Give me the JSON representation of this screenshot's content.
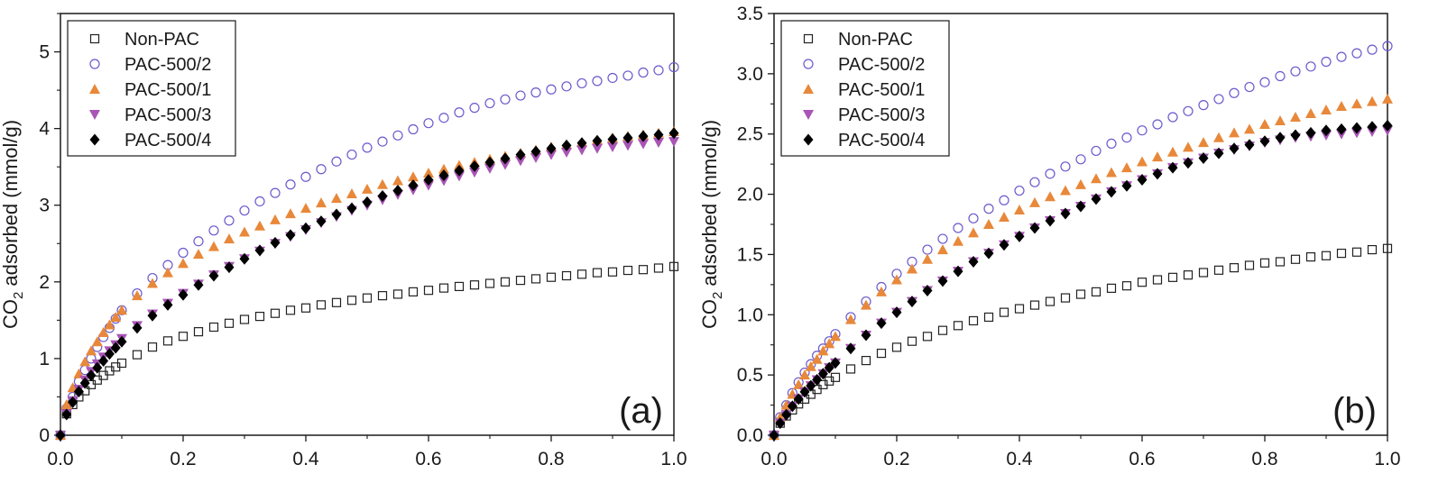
{
  "chart_data": [
    {
      "type": "scatter",
      "panel_label": "(a)",
      "ylabel_main": "CO",
      "ylabel_sub": "2",
      "ylabel_rest": " adsorbed (mmol/g)",
      "xlim": [
        0,
        1.0
      ],
      "ylim": [
        0,
        5.5
      ],
      "xticks": [
        "0.0",
        "0.2",
        "0.4",
        "0.6",
        "0.8",
        "1.0"
      ],
      "yticks": [
        "0",
        "1",
        "2",
        "3",
        "4",
        "5"
      ],
      "legend_position": "top-left",
      "series": [
        {
          "name": "Non-PAC",
          "marker": "square-open",
          "color": "#222222",
          "x": [
            0.0,
            0.01,
            0.02,
            0.03,
            0.04,
            0.05,
            0.06,
            0.07,
            0.08,
            0.09,
            0.1,
            0.125,
            0.15,
            0.175,
            0.2,
            0.225,
            0.25,
            0.275,
            0.3,
            0.325,
            0.35,
            0.375,
            0.4,
            0.425,
            0.45,
            0.475,
            0.5,
            0.525,
            0.55,
            0.575,
            0.6,
            0.625,
            0.65,
            0.675,
            0.7,
            0.725,
            0.75,
            0.775,
            0.8,
            0.825,
            0.85,
            0.875,
            0.9,
            0.925,
            0.95,
            0.975,
            1.0
          ],
          "y": [
            0.0,
            0.28,
            0.4,
            0.5,
            0.58,
            0.66,
            0.72,
            0.78,
            0.84,
            0.89,
            0.94,
            1.05,
            1.15,
            1.23,
            1.29,
            1.35,
            1.41,
            1.46,
            1.51,
            1.55,
            1.59,
            1.63,
            1.66,
            1.7,
            1.73,
            1.76,
            1.79,
            1.82,
            1.84,
            1.87,
            1.89,
            1.92,
            1.94,
            1.96,
            1.98,
            2.0,
            2.02,
            2.04,
            2.06,
            2.08,
            2.1,
            2.12,
            2.13,
            2.15,
            2.16,
            2.18,
            2.2
          ]
        },
        {
          "name": "PAC-500/2",
          "marker": "circle-open",
          "color": "#6a5acd",
          "x": [
            0.0,
            0.01,
            0.02,
            0.03,
            0.04,
            0.05,
            0.06,
            0.07,
            0.08,
            0.09,
            0.1,
            0.125,
            0.15,
            0.175,
            0.2,
            0.225,
            0.25,
            0.275,
            0.3,
            0.325,
            0.35,
            0.375,
            0.4,
            0.425,
            0.45,
            0.475,
            0.5,
            0.525,
            0.55,
            0.575,
            0.6,
            0.625,
            0.65,
            0.675,
            0.7,
            0.725,
            0.75,
            0.775,
            0.8,
            0.825,
            0.85,
            0.875,
            0.9,
            0.925,
            0.95,
            0.975,
            1.0
          ],
          "y": [
            0.0,
            0.35,
            0.5,
            0.7,
            0.85,
            1.0,
            1.15,
            1.28,
            1.4,
            1.52,
            1.63,
            1.85,
            2.05,
            2.22,
            2.38,
            2.53,
            2.67,
            2.8,
            2.93,
            3.05,
            3.16,
            3.27,
            3.37,
            3.47,
            3.57,
            3.66,
            3.75,
            3.83,
            3.91,
            3.99,
            4.07,
            4.14,
            4.21,
            4.27,
            4.33,
            4.38,
            4.43,
            4.47,
            4.51,
            4.55,
            4.59,
            4.62,
            4.66,
            4.69,
            4.73,
            4.76,
            4.8
          ]
        },
        {
          "name": "PAC-500/1",
          "marker": "triangle-up",
          "color": "#e8883a",
          "x": [
            0.0,
            0.01,
            0.02,
            0.03,
            0.04,
            0.05,
            0.06,
            0.07,
            0.08,
            0.09,
            0.1,
            0.125,
            0.15,
            0.175,
            0.2,
            0.225,
            0.25,
            0.275,
            0.3,
            0.325,
            0.35,
            0.375,
            0.4,
            0.425,
            0.45,
            0.475,
            0.5,
            0.525,
            0.55,
            0.575,
            0.6,
            0.625,
            0.65,
            0.675,
            0.7,
            0.725,
            0.75,
            0.775,
            0.8,
            0.825,
            0.85,
            0.875,
            0.9,
            0.925,
            0.95,
            0.975,
            1.0
          ],
          "y": [
            0.0,
            0.4,
            0.62,
            0.8,
            0.96,
            1.1,
            1.22,
            1.34,
            1.44,
            1.54,
            1.63,
            1.82,
            1.98,
            2.12,
            2.24,
            2.36,
            2.46,
            2.56,
            2.65,
            2.73,
            2.81,
            2.89,
            2.96,
            3.03,
            3.09,
            3.15,
            3.21,
            3.27,
            3.32,
            3.37,
            3.42,
            3.47,
            3.52,
            3.56,
            3.6,
            3.64,
            3.68,
            3.72,
            3.76,
            3.79,
            3.82,
            3.85,
            3.88,
            3.9,
            3.92,
            3.94,
            3.96
          ]
        },
        {
          "name": "PAC-500/3",
          "marker": "triangle-down",
          "color": "#a855b5",
          "x": [
            0.0,
            0.01,
            0.02,
            0.03,
            0.04,
            0.05,
            0.06,
            0.07,
            0.08,
            0.09,
            0.1,
            0.125,
            0.15,
            0.175,
            0.2,
            0.225,
            0.25,
            0.275,
            0.3,
            0.325,
            0.35,
            0.375,
            0.4,
            0.425,
            0.45,
            0.475,
            0.5,
            0.525,
            0.55,
            0.575,
            0.6,
            0.625,
            0.65,
            0.675,
            0.7,
            0.725,
            0.75,
            0.775,
            0.8,
            0.825,
            0.85,
            0.875,
            0.9,
            0.925,
            0.95,
            0.975,
            1.0
          ],
          "y": [
            0.0,
            0.28,
            0.45,
            0.6,
            0.72,
            0.83,
            0.93,
            1.02,
            1.1,
            1.18,
            1.26,
            1.43,
            1.58,
            1.72,
            1.85,
            1.97,
            2.09,
            2.2,
            2.3,
            2.4,
            2.5,
            2.59,
            2.68,
            2.77,
            2.85,
            2.93,
            3.0,
            3.07,
            3.14,
            3.2,
            3.26,
            3.32,
            3.38,
            3.43,
            3.48,
            3.53,
            3.58,
            3.62,
            3.66,
            3.69,
            3.72,
            3.74,
            3.76,
            3.78,
            3.8,
            3.82,
            3.83
          ]
        },
        {
          "name": "PAC-500/4",
          "marker": "diamond",
          "color": "#000000",
          "x": [
            0.0,
            0.01,
            0.02,
            0.03,
            0.04,
            0.05,
            0.06,
            0.07,
            0.08,
            0.09,
            0.1,
            0.125,
            0.15,
            0.175,
            0.2,
            0.225,
            0.25,
            0.275,
            0.3,
            0.325,
            0.35,
            0.375,
            0.4,
            0.425,
            0.45,
            0.475,
            0.5,
            0.525,
            0.55,
            0.575,
            0.6,
            0.625,
            0.65,
            0.675,
            0.7,
            0.725,
            0.75,
            0.775,
            0.8,
            0.825,
            0.85,
            0.875,
            0.9,
            0.925,
            0.95,
            0.975,
            1.0
          ],
          "y": [
            0.0,
            0.27,
            0.43,
            0.57,
            0.68,
            0.78,
            0.88,
            0.97,
            1.06,
            1.14,
            1.22,
            1.4,
            1.56,
            1.7,
            1.83,
            1.96,
            2.08,
            2.19,
            2.3,
            2.41,
            2.51,
            2.61,
            2.7,
            2.79,
            2.88,
            2.96,
            3.04,
            3.12,
            3.19,
            3.26,
            3.33,
            3.39,
            3.45,
            3.51,
            3.56,
            3.61,
            3.66,
            3.7,
            3.74,
            3.78,
            3.81,
            3.84,
            3.86,
            3.88,
            3.9,
            3.92,
            3.94
          ]
        }
      ]
    },
    {
      "type": "scatter",
      "panel_label": "(b)",
      "ylabel_main": "CO",
      "ylabel_sub": "2",
      "ylabel_rest": " adsorbed (mmol/g)",
      "xlim": [
        0,
        1.0
      ],
      "ylim": [
        0,
        3.5
      ],
      "xticks": [
        "0.0",
        "0.2",
        "0.4",
        "0.6",
        "0.8",
        "1.0"
      ],
      "yticks": [
        "0.0",
        "0.5",
        "1.0",
        "1.5",
        "2.0",
        "2.5",
        "3.0",
        "3.5"
      ],
      "legend_position": "top-left",
      "series": [
        {
          "name": "Non-PAC",
          "marker": "square-open",
          "color": "#222222",
          "x": [
            0.0,
            0.01,
            0.02,
            0.03,
            0.04,
            0.05,
            0.06,
            0.07,
            0.08,
            0.09,
            0.1,
            0.125,
            0.15,
            0.175,
            0.2,
            0.225,
            0.25,
            0.275,
            0.3,
            0.325,
            0.35,
            0.375,
            0.4,
            0.425,
            0.45,
            0.475,
            0.5,
            0.525,
            0.55,
            0.575,
            0.6,
            0.625,
            0.65,
            0.675,
            0.7,
            0.725,
            0.75,
            0.775,
            0.8,
            0.825,
            0.85,
            0.875,
            0.9,
            0.925,
            0.95,
            0.975,
            1.0
          ],
          "y": [
            0.0,
            0.1,
            0.16,
            0.21,
            0.26,
            0.3,
            0.34,
            0.38,
            0.42,
            0.45,
            0.48,
            0.55,
            0.62,
            0.68,
            0.73,
            0.78,
            0.82,
            0.87,
            0.91,
            0.95,
            0.98,
            1.02,
            1.05,
            1.08,
            1.11,
            1.14,
            1.17,
            1.19,
            1.22,
            1.24,
            1.27,
            1.29,
            1.31,
            1.33,
            1.35,
            1.37,
            1.39,
            1.41,
            1.43,
            1.44,
            1.46,
            1.48,
            1.49,
            1.51,
            1.52,
            1.54,
            1.55
          ]
        },
        {
          "name": "PAC-500/2",
          "marker": "circle-open",
          "color": "#6a5acd",
          "x": [
            0.0,
            0.01,
            0.02,
            0.03,
            0.04,
            0.05,
            0.06,
            0.07,
            0.08,
            0.09,
            0.1,
            0.125,
            0.15,
            0.175,
            0.2,
            0.225,
            0.25,
            0.275,
            0.3,
            0.325,
            0.35,
            0.375,
            0.4,
            0.425,
            0.45,
            0.475,
            0.5,
            0.525,
            0.55,
            0.575,
            0.6,
            0.625,
            0.65,
            0.675,
            0.7,
            0.725,
            0.75,
            0.775,
            0.8,
            0.825,
            0.85,
            0.875,
            0.9,
            0.925,
            0.95,
            0.975,
            1.0
          ],
          "y": [
            0.0,
            0.15,
            0.25,
            0.35,
            0.44,
            0.52,
            0.59,
            0.66,
            0.72,
            0.78,
            0.84,
            0.98,
            1.11,
            1.23,
            1.34,
            1.44,
            1.54,
            1.63,
            1.72,
            1.8,
            1.88,
            1.95,
            2.03,
            2.1,
            2.17,
            2.23,
            2.29,
            2.36,
            2.42,
            2.47,
            2.53,
            2.58,
            2.64,
            2.69,
            2.74,
            2.79,
            2.84,
            2.89,
            2.93,
            2.98,
            3.02,
            3.06,
            3.1,
            3.14,
            3.17,
            3.2,
            3.23
          ]
        },
        {
          "name": "PAC-500/1",
          "marker": "triangle-up",
          "color": "#e8883a",
          "x": [
            0.0,
            0.01,
            0.02,
            0.03,
            0.04,
            0.05,
            0.06,
            0.07,
            0.08,
            0.09,
            0.1,
            0.125,
            0.15,
            0.175,
            0.2,
            0.225,
            0.25,
            0.275,
            0.3,
            0.325,
            0.35,
            0.375,
            0.4,
            0.425,
            0.45,
            0.475,
            0.5,
            0.525,
            0.55,
            0.575,
            0.6,
            0.625,
            0.65,
            0.675,
            0.7,
            0.725,
            0.75,
            0.775,
            0.8,
            0.825,
            0.85,
            0.875,
            0.9,
            0.925,
            0.95,
            0.975,
            1.0
          ],
          "y": [
            0.0,
            0.15,
            0.25,
            0.34,
            0.42,
            0.5,
            0.57,
            0.63,
            0.7,
            0.76,
            0.82,
            0.96,
            1.08,
            1.19,
            1.29,
            1.38,
            1.46,
            1.54,
            1.61,
            1.68,
            1.75,
            1.81,
            1.87,
            1.93,
            1.98,
            2.03,
            2.08,
            2.13,
            2.18,
            2.22,
            2.27,
            2.31,
            2.35,
            2.39,
            2.43,
            2.47,
            2.51,
            2.54,
            2.58,
            2.61,
            2.64,
            2.67,
            2.7,
            2.73,
            2.75,
            2.77,
            2.79
          ]
        },
        {
          "name": "PAC-500/3",
          "marker": "triangle-down",
          "color": "#a855b5",
          "x": [
            0.0,
            0.01,
            0.02,
            0.03,
            0.04,
            0.05,
            0.06,
            0.07,
            0.08,
            0.09,
            0.1,
            0.125,
            0.15,
            0.175,
            0.2,
            0.225,
            0.25,
            0.275,
            0.3,
            0.325,
            0.35,
            0.375,
            0.4,
            0.425,
            0.45,
            0.475,
            0.5,
            0.525,
            0.55,
            0.575,
            0.6,
            0.625,
            0.65,
            0.675,
            0.7,
            0.725,
            0.75,
            0.775,
            0.8,
            0.825,
            0.85,
            0.875,
            0.9,
            0.925,
            0.95,
            0.975,
            1.0
          ],
          "y": [
            0.0,
            0.1,
            0.17,
            0.24,
            0.3,
            0.36,
            0.41,
            0.46,
            0.51,
            0.56,
            0.6,
            0.72,
            0.83,
            0.93,
            1.02,
            1.11,
            1.2,
            1.28,
            1.36,
            1.44,
            1.51,
            1.58,
            1.65,
            1.72,
            1.78,
            1.84,
            1.9,
            1.96,
            2.02,
            2.07,
            2.12,
            2.17,
            2.22,
            2.26,
            2.3,
            2.34,
            2.37,
            2.4,
            2.43,
            2.45,
            2.47,
            2.48,
            2.49,
            2.5,
            2.51,
            2.52,
            2.53
          ]
        },
        {
          "name": "PAC-500/4",
          "marker": "diamond",
          "color": "#000000",
          "x": [
            0.0,
            0.01,
            0.02,
            0.03,
            0.04,
            0.05,
            0.06,
            0.07,
            0.08,
            0.09,
            0.1,
            0.125,
            0.15,
            0.175,
            0.2,
            0.225,
            0.25,
            0.275,
            0.3,
            0.325,
            0.35,
            0.375,
            0.4,
            0.425,
            0.45,
            0.475,
            0.5,
            0.525,
            0.55,
            0.575,
            0.6,
            0.625,
            0.65,
            0.675,
            0.7,
            0.725,
            0.75,
            0.775,
            0.8,
            0.825,
            0.85,
            0.875,
            0.9,
            0.925,
            0.95,
            0.975,
            1.0
          ],
          "y": [
            0.0,
            0.1,
            0.17,
            0.24,
            0.3,
            0.36,
            0.41,
            0.46,
            0.51,
            0.56,
            0.6,
            0.72,
            0.83,
            0.93,
            1.02,
            1.11,
            1.2,
            1.28,
            1.36,
            1.44,
            1.51,
            1.58,
            1.65,
            1.72,
            1.78,
            1.84,
            1.9,
            1.96,
            2.02,
            2.07,
            2.12,
            2.17,
            2.22,
            2.26,
            2.3,
            2.34,
            2.38,
            2.41,
            2.44,
            2.47,
            2.49,
            2.51,
            2.53,
            2.54,
            2.55,
            2.56,
            2.57
          ]
        }
      ]
    }
  ]
}
